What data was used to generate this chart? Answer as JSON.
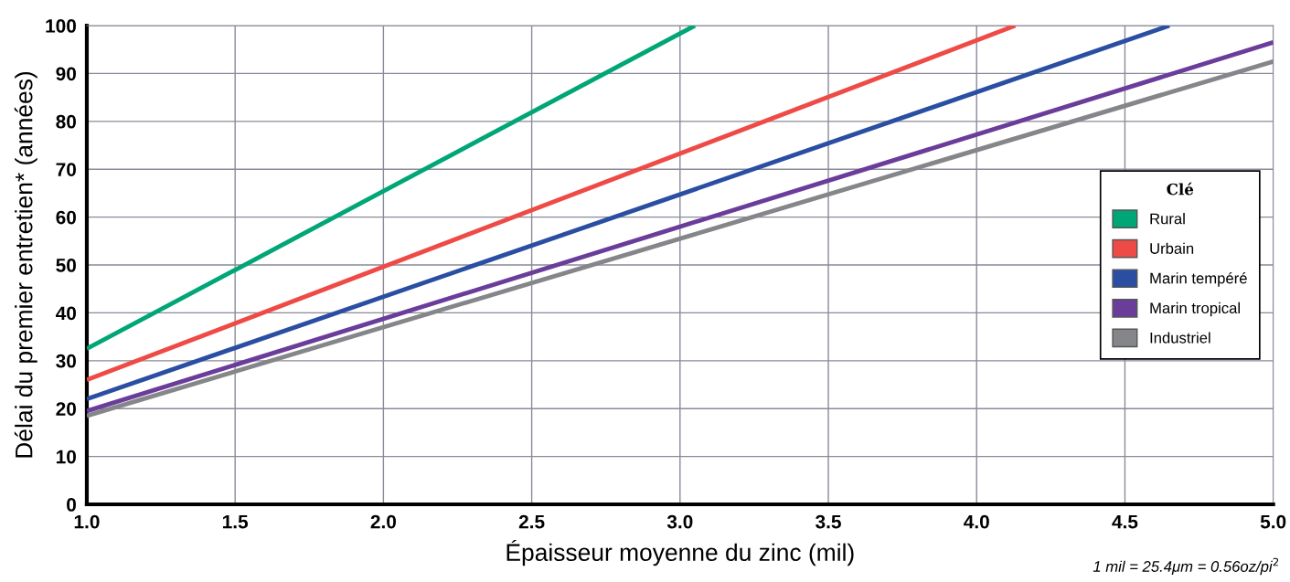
{
  "chart_data": {
    "type": "line",
    "xlabel": "Épaisseur moyenne du zinc (mil)",
    "ylabel": "Délai du premier entretien* (années)",
    "legend_title": "Clé",
    "legend": "right",
    "grid": true,
    "marker": "none",
    "line_style": "solid",
    "xlim": [
      1.0,
      5.0
    ],
    "xticks": [
      {
        "value": 1.0,
        "label": "1.0"
      },
      {
        "value": 1.5,
        "label": "1.5"
      },
      {
        "value": 2.0,
        "label": "2.0"
      },
      {
        "value": 2.5,
        "label": "2.5"
      },
      {
        "value": 3.0,
        "label": "3.0"
      },
      {
        "value": 3.5,
        "label": "3.5"
      },
      {
        "value": 4.0,
        "label": "4.0"
      },
      {
        "value": 4.5,
        "label": "4.5"
      },
      {
        "value": 5.0,
        "label": "5.0"
      }
    ],
    "ylim": [
      0,
      100
    ],
    "yticks": [
      0,
      10,
      20,
      30,
      40,
      50,
      60,
      70,
      80,
      90,
      100
    ],
    "series": [
      {
        "name": "Rural",
        "color": "#00a676",
        "x": [
          1.0,
          3.05
        ],
        "values": [
          32.5,
          100
        ]
      },
      {
        "name": "Urbain",
        "color": "#ef4b46",
        "x": [
          1.0,
          4.13
        ],
        "values": [
          26,
          100
        ]
      },
      {
        "name": "Marin tempéré",
        "color": "#2a4ea2",
        "x": [
          1.0,
          4.65
        ],
        "values": [
          22,
          100
        ]
      },
      {
        "name": "Marin tropical",
        "color": "#6a3d9a",
        "x": [
          1.0,
          5.0
        ],
        "values": [
          19.5,
          96.5
        ]
      },
      {
        "name": "Industriel",
        "color": "#85868a",
        "x": [
          1.0,
          5.0
        ],
        "values": [
          18.5,
          92.5
        ]
      }
    ],
    "annotations": [
      "1 mil = 25.4μm = 0.56oz/pi$^{2}$"
    ]
  }
}
